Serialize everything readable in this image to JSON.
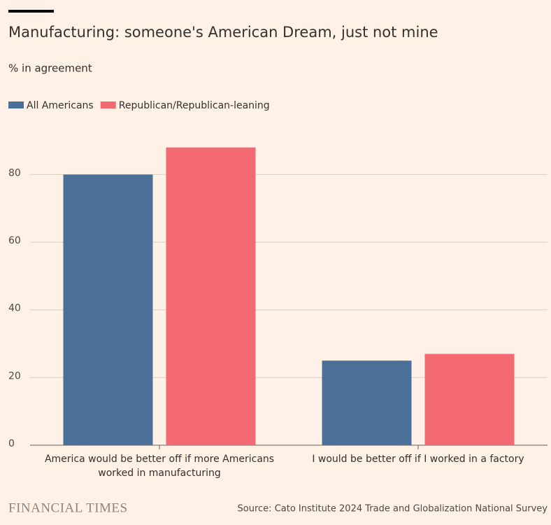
{
  "chart_data": {
    "type": "bar",
    "title": "Manufacturing: someone's American Dream, just not mine",
    "subtitle": "% in agreement",
    "categories": [
      "America would be better off if more Americans worked in manufacturing",
      "I would be better off if I worked in a factory"
    ],
    "series": [
      {
        "name": "All Americans",
        "color": "#4a6f98",
        "values": [
          80,
          25
        ]
      },
      {
        "name": "Republican/Republican-leaning",
        "color": "#f36a72",
        "values": [
          88,
          27
        ]
      }
    ],
    "ylim": [
      0,
      90
    ],
    "yticks": [
      0,
      20,
      40,
      60,
      80
    ],
    "grid": true,
    "source": "Source: Cato Institute 2024 Trade and Globalization National Survey",
    "brand": "FINANCIAL TIMES"
  }
}
